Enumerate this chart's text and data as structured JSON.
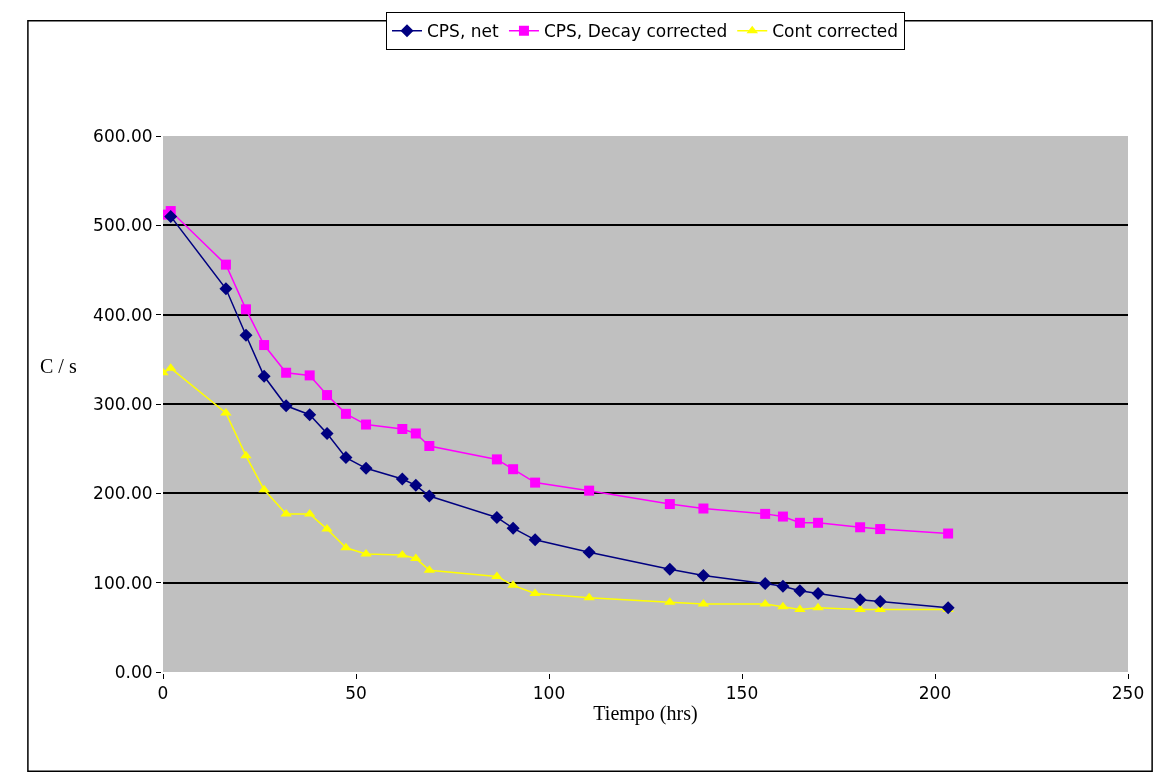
{
  "chart_data": {
    "type": "line",
    "xlabel": "Tiempo (hrs)",
    "ylabel": "C / s",
    "x": [
      0,
      2,
      16.3,
      21.5,
      26.2,
      31.9,
      38,
      42.5,
      47.4,
      52.6,
      62,
      65.5,
      69,
      86.5,
      90.7,
      96.4,
      110.4,
      131.3,
      140,
      156,
      160.6,
      165,
      169.7,
      180.6,
      185.8,
      203.4
    ],
    "series": [
      {
        "name": "CPS, net",
        "color": "#000080",
        "marker": "diamond",
        "values": [
          null,
          510,
          429,
          377,
          331,
          298,
          288,
          267,
          240,
          228,
          216,
          209,
          197,
          173,
          161,
          148,
          134,
          115,
          108,
          99,
          96,
          91,
          88,
          81,
          79,
          72
        ]
      },
      {
        "name": "CPS, Decay corrected",
        "color": "#ff00ff",
        "marker": "square",
        "values": [
          512,
          516,
          456,
          406,
          366,
          335,
          332,
          310,
          289,
          277,
          272,
          267,
          253,
          238,
          227,
          212,
          203,
          188,
          183,
          177,
          174,
          167,
          167,
          162,
          160,
          155
        ]
      },
      {
        "name": "Cont corrected",
        "color": "#ffff00",
        "marker": "triangle",
        "values": [
          335,
          340,
          290,
          242,
          204,
          177,
          177,
          160,
          139,
          132,
          131,
          127,
          114,
          107,
          97,
          88,
          83,
          78,
          76,
          76,
          73,
          70,
          72,
          70,
          70,
          70
        ]
      }
    ],
    "xlim": [
      0,
      250
    ],
    "xticks": [
      0,
      50,
      100,
      150,
      200,
      250
    ],
    "ylim": [
      0,
      600
    ],
    "yticks": [
      {
        "value": 0,
        "label": "0.00"
      },
      {
        "value": 100,
        "label": "100.00"
      },
      {
        "value": 200,
        "label": "200.00"
      },
      {
        "value": 300,
        "label": "300.00"
      },
      {
        "value": 400,
        "label": "400.00"
      },
      {
        "value": 500,
        "label": "500.00"
      },
      {
        "value": 600,
        "label": "600.00"
      }
    ],
    "grid": "y",
    "legend": "top"
  }
}
